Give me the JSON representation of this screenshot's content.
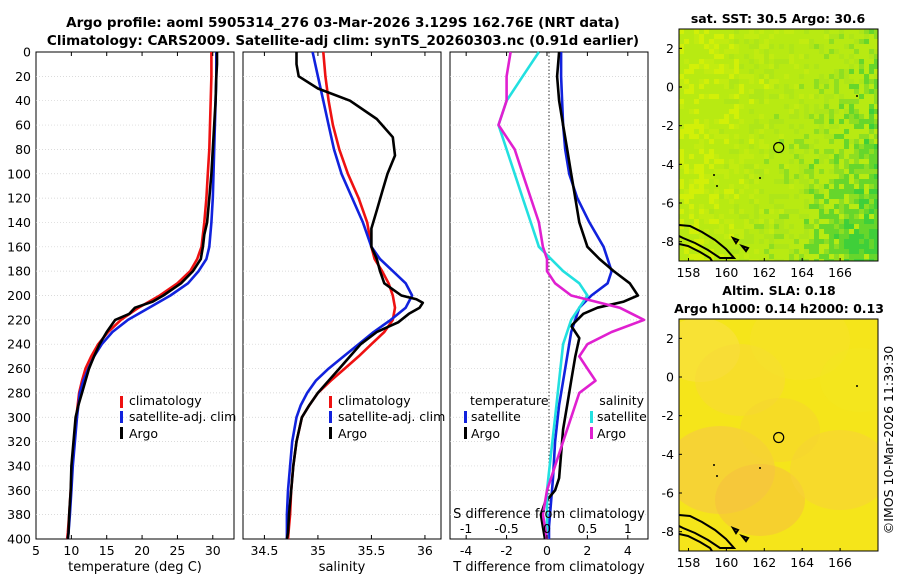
{
  "title": {
    "line1": "Argo profile: aoml 5905314_276 03-Mar-2026 3.129S 162.76E (NRT data)",
    "line2": "Climatology: CARS2009. Satellite-adj clim: synTS_20260303.nc (0.91d earlier)"
  },
  "colors": {
    "climatology": "#ee1111",
    "satellite": "#1122dd",
    "argo": "#000000",
    "s_satellite": "#22e0e0",
    "s_argo": "#e020d0"
  },
  "depth_axis": {
    "ticks": [
      "0",
      "20",
      "40",
      "60",
      "80",
      "100",
      "120",
      "140",
      "160",
      "180",
      "200",
      "220",
      "240",
      "260",
      "280",
      "300",
      "320",
      "340",
      "360",
      "380",
      "400"
    ]
  },
  "chart_data": [
    {
      "type": "line",
      "title": "",
      "xlabel": "temperature (deg C)",
      "ylabel": "depth",
      "xlim": [
        5,
        33
      ],
      "ylim": [
        400,
        0
      ],
      "xticks": [
        "5",
        "10",
        "15",
        "20",
        "25",
        "30"
      ],
      "legend": [
        "climatology",
        "satellite-adj. clim",
        "Argo"
      ],
      "series": [
        {
          "name": "climatology",
          "color": "#ee1111",
          "x": [
            29.8,
            29.8,
            29.7,
            29.6,
            29.5,
            29.3,
            29.1,
            28.8,
            28.4,
            27.8,
            26.8,
            25.0,
            22.5,
            19.5,
            17.0,
            15.2,
            13.8,
            12.8,
            12.0,
            11.5,
            11.1,
            10.7,
            10.4,
            10.1,
            9.9,
            9.7,
            9.5,
            9.4
          ],
          "y": [
            0,
            20,
            40,
            60,
            80,
            100,
            120,
            140,
            160,
            170,
            180,
            190,
            200,
            210,
            220,
            230,
            240,
            250,
            260,
            270,
            280,
            300,
            320,
            340,
            360,
            380,
            395,
            400
          ]
        },
        {
          "name": "satellite-adj. clim",
          "color": "#1122dd",
          "x": [
            30.5,
            30.5,
            30.4,
            30.3,
            30.2,
            30.1,
            30.0,
            29.8,
            29.5,
            29.1,
            28.0,
            26.5,
            24.0,
            21.0,
            18.0,
            15.8,
            14.3,
            13.2,
            12.4,
            11.7,
            11.2,
            10.8,
            10.5,
            10.2,
            10.0,
            9.8,
            9.6,
            9.5
          ],
          "y": [
            0,
            20,
            40,
            60,
            80,
            100,
            120,
            140,
            160,
            170,
            180,
            190,
            200,
            210,
            220,
            230,
            240,
            250,
            260,
            270,
            280,
            300,
            320,
            340,
            360,
            380,
            395,
            400
          ]
        },
        {
          "name": "Argo",
          "color": "#000000",
          "x": [
            30.6,
            30.6,
            30.5,
            30.4,
            30.2,
            30.0,
            29.8,
            29.5,
            29.2,
            28.8,
            28.6,
            28.3,
            27.2,
            25.5,
            23.0,
            21.5,
            19.0,
            18.2,
            16.2,
            15.0,
            14.0,
            13.2,
            12.5,
            12.0,
            11.5,
            11.0,
            10.6,
            10.3,
            10.0,
            9.9,
            9.7,
            9.6,
            9.5
          ],
          "y": [
            0,
            10,
            20,
            40,
            60,
            80,
            100,
            120,
            140,
            150,
            160,
            170,
            180,
            190,
            200,
            205,
            210,
            215,
            220,
            230,
            240,
            250,
            260,
            270,
            280,
            290,
            300,
            320,
            340,
            360,
            380,
            395,
            400
          ]
        }
      ]
    },
    {
      "type": "line",
      "title": "",
      "xlabel": "salinity",
      "ylabel": "depth",
      "xlim": [
        34.3,
        36.15
      ],
      "ylim": [
        400,
        0
      ],
      "xticks": [
        "34.5",
        "35",
        "35.5",
        "36"
      ],
      "legend": [
        "climatology",
        "satellite-adj. clim",
        "Argo"
      ],
      "series": [
        {
          "name": "climatology",
          "color": "#ee1111",
          "x": [
            35.05,
            35.07,
            35.1,
            35.14,
            35.2,
            35.28,
            35.38,
            35.46,
            35.5,
            35.53,
            35.6,
            35.66,
            35.7,
            35.72,
            35.7,
            35.62,
            35.5,
            35.38,
            35.25,
            35.12,
            35.0,
            34.92,
            34.85,
            34.8,
            34.77,
            34.75,
            34.74,
            34.73,
            34.72,
            34.72
          ],
          "y": [
            0,
            20,
            40,
            60,
            80,
            100,
            120,
            140,
            160,
            170,
            180,
            190,
            200,
            210,
            220,
            230,
            240,
            250,
            260,
            270,
            280,
            290,
            300,
            320,
            340,
            360,
            380,
            390,
            400,
            400
          ]
        },
        {
          "name": "satellite-adj. clim",
          "color": "#1122dd",
          "x": [
            34.95,
            35.0,
            35.05,
            35.1,
            35.15,
            35.22,
            35.32,
            35.42,
            35.5,
            35.58,
            35.7,
            35.82,
            35.88,
            35.82,
            35.68,
            35.52,
            35.38,
            35.24,
            35.1,
            34.98,
            34.9,
            34.84,
            34.8,
            34.76,
            34.74,
            34.72,
            34.71,
            34.71
          ],
          "y": [
            0,
            20,
            40,
            60,
            80,
            100,
            120,
            140,
            160,
            170,
            180,
            190,
            200,
            210,
            220,
            230,
            240,
            250,
            260,
            270,
            280,
            290,
            300,
            320,
            340,
            360,
            380,
            400
          ]
        },
        {
          "name": "Argo",
          "color": "#000000",
          "x": [
            34.8,
            34.8,
            34.82,
            35.0,
            35.3,
            35.55,
            35.7,
            35.72,
            35.65,
            35.6,
            35.55,
            35.5,
            35.5,
            35.55,
            35.58,
            35.62,
            35.7,
            35.78,
            35.92,
            35.98,
            35.95,
            35.85,
            35.75,
            35.55,
            35.4,
            35.3,
            35.2,
            35.1,
            35.0,
            34.92,
            34.85,
            34.8,
            34.77,
            34.75,
            34.73,
            34.72,
            34.71
          ],
          "y": [
            0,
            10,
            20,
            30,
            40,
            55,
            70,
            85,
            100,
            115,
            130,
            145,
            160,
            170,
            180,
            190,
            195,
            200,
            203,
            206,
            210,
            215,
            222,
            230,
            240,
            250,
            260,
            270,
            280,
            290,
            300,
            320,
            340,
            360,
            380,
            395,
            400
          ]
        }
      ]
    },
    {
      "type": "line",
      "title": "",
      "xlabel": "T difference from climatology",
      "xlabel_top": "S difference from climatology",
      "ylabel": "depth",
      "xlim": [
        -4.8,
        5.0
      ],
      "ylim": [
        400,
        0
      ],
      "xticks": [
        "-4",
        "-2",
        "0",
        "2",
        "4"
      ],
      "xticks_top": [
        "-1",
        "-0.5",
        "0",
        "0.5",
        "1"
      ],
      "legend_left_title": "temperature",
      "legend_right_title": "salinity",
      "legend": [
        "satellite",
        "Argo",
        "satellite",
        "Argo"
      ],
      "series": [
        {
          "name": "T satellite",
          "color": "#1122dd",
          "x": [
            0.7,
            0.7,
            0.75,
            0.8,
            0.9,
            1.1,
            1.5,
            2.1,
            2.8,
            3.2,
            3.0,
            2.2,
            1.6,
            1.2,
            0.9,
            0.6,
            0.4,
            0.3,
            0.2,
            0.1,
            0.1
          ],
          "y": [
            0,
            20,
            40,
            60,
            80,
            100,
            120,
            140,
            160,
            180,
            190,
            200,
            210,
            230,
            260,
            290,
            320,
            350,
            370,
            390,
            400
          ]
        },
        {
          "name": "T Argo",
          "color": "#000000",
          "x": [
            0.6,
            0.5,
            0.6,
            0.8,
            1.0,
            1.2,
            1.4,
            1.6,
            2.0,
            2.6,
            3.3,
            4.1,
            4.5,
            3.8,
            2.5,
            1.8,
            1.2,
            1.6,
            1.4,
            1.2,
            1.0,
            0.8,
            0.7,
            0.6,
            0.4,
            -0.1,
            -0.3,
            -0.2,
            -0.1
          ],
          "y": [
            0,
            20,
            40,
            60,
            80,
            100,
            120,
            140,
            160,
            170,
            180,
            190,
            200,
            205,
            210,
            215,
            225,
            235,
            250,
            270,
            290,
            310,
            330,
            350,
            360,
            370,
            380,
            390,
            400
          ]
        },
        {
          "name": "S satellite",
          "color": "#22e0e0",
          "x": [
            -0.1,
            -0.3,
            -0.5,
            -0.6,
            -0.5,
            -0.4,
            -0.3,
            -0.2,
            -0.1,
            0.2,
            0.4,
            0.5,
            0.4,
            0.3,
            0.2,
            0.15,
            0.1,
            0.05,
            0.0,
            0.0
          ],
          "y": [
            0,
            20,
            40,
            60,
            80,
            100,
            120,
            140,
            160,
            180,
            190,
            200,
            210,
            220,
            240,
            270,
            300,
            330,
            360,
            400
          ]
        },
        {
          "name": "S Argo",
          "color": "#e020d0",
          "x": [
            -0.45,
            -0.5,
            -0.5,
            -0.6,
            -0.4,
            -0.3,
            -0.2,
            -0.1,
            -0.05,
            0.0,
            0.0,
            0.1,
            0.3,
            0.6,
            0.9,
            1.2,
            0.8,
            0.5,
            0.4,
            0.5,
            0.6,
            0.4,
            0.3,
            0.2,
            0.1,
            0.0,
            -0.05,
            0.0
          ],
          "y": [
            0,
            20,
            40,
            60,
            80,
            100,
            120,
            140,
            160,
            170,
            180,
            190,
            200,
            205,
            210,
            220,
            230,
            240,
            250,
            260,
            270,
            280,
            300,
            320,
            340,
            360,
            380,
            400
          ]
        }
      ]
    },
    {
      "type": "heatmap",
      "title": "sat. SST: 30.5 Argo: 30.6",
      "xlim": [
        157.5,
        168
      ],
      "ylim": [
        -9,
        3
      ],
      "xticks": [
        "158",
        "160",
        "162",
        "164",
        "166"
      ],
      "yticks": [
        "2",
        "0",
        "-2",
        "-4",
        "-6",
        "-8"
      ],
      "marker": {
        "lon": 162.76,
        "lat": -3.129
      }
    },
    {
      "type": "heatmap",
      "title": "Altim. SLA: 0.18",
      "subtitle": "Argo h1000: 0.14 h2000: 0.13",
      "xlim": [
        157.5,
        168
      ],
      "ylim": [
        -9,
        3
      ],
      "xticks": [
        "158",
        "160",
        "162",
        "164",
        "166"
      ],
      "yticks": [
        "2",
        "0",
        "-2",
        "-4",
        "-6",
        "-8"
      ],
      "marker": {
        "lon": 162.76,
        "lat": -3.129
      }
    }
  ],
  "credit": "©IMOS 10-Mar-2026 11:39:30"
}
